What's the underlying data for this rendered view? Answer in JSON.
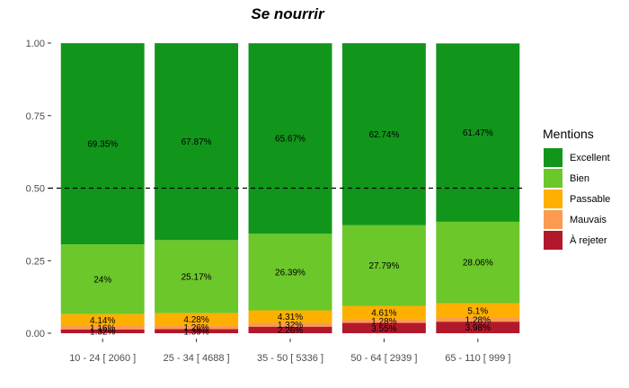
{
  "chart_data": {
    "type": "bar",
    "stacked": true,
    "title": "Se nourrir",
    "xlabel": "",
    "ylabel": "",
    "ylim": [
      0,
      1
    ],
    "yticks": [
      "0.00",
      "0.25",
      "0.50",
      "0.75",
      "1.00"
    ],
    "ytick_values": [
      0,
      0.25,
      0.5,
      0.75,
      1
    ],
    "reference_line": {
      "y": 0.5,
      "style": "dashed",
      "color": "#000000"
    },
    "grid": false,
    "categories": [
      "10 - 24 [ 2060 ]",
      "25 - 34 [ 4688 ]",
      "35 - 50 [ 5336 ]",
      "50 - 64 [ 2939 ]",
      "65 - 110 [ 999 ]"
    ],
    "series": [
      {
        "name": "À rejeter",
        "color": "#b2182b",
        "values": [
          0.0132,
          0.0139,
          0.0226,
          0.0355,
          0.0398
        ],
        "labels": [
          "1.32%",
          "1.39%",
          "2.26%",
          "3.55%",
          "3.98%"
        ]
      },
      {
        "name": "Mauvais",
        "color": "#fb9a50",
        "values": [
          0.0116,
          0.0126,
          0.0132,
          0.0128,
          0.0128
        ],
        "labels": [
          "1.16%",
          "1.26%",
          "1.32%",
          "1.28%",
          "1.28%"
        ]
      },
      {
        "name": "Passable",
        "color": "#fdb000",
        "values": [
          0.0414,
          0.0428,
          0.0431,
          0.0461,
          0.051
        ],
        "labels": [
          "4.14%",
          "4.28%",
          "4.31%",
          "4.61%",
          "5.1%"
        ]
      },
      {
        "name": "Bien",
        "color": "#6bc72a",
        "values": [
          0.24,
          0.2517,
          0.2639,
          0.2779,
          0.2806
        ],
        "labels": [
          "24%",
          "25.17%",
          "26.39%",
          "27.79%",
          "28.06%"
        ]
      },
      {
        "name": "Excellent",
        "color": "#11961b",
        "values": [
          0.6935,
          0.6787,
          0.6567,
          0.6274,
          0.6147
        ],
        "labels": [
          "69.35%",
          "67.87%",
          "65.67%",
          "62.74%",
          "61.47%"
        ]
      }
    ],
    "legend": {
      "title": "Mentions",
      "position": "right",
      "order": [
        "Excellent",
        "Bien",
        "Passable",
        "Mauvais",
        "À rejeter"
      ]
    }
  }
}
